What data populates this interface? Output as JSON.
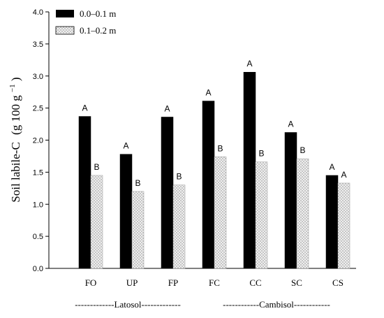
{
  "chart_data": {
    "type": "bar",
    "ylabel_main": "Soil labile-C",
    "ylabel_unit_open": "(g 100 g",
    "ylabel_unit_sup": "−1",
    "ylabel_unit_close": ")",
    "ylim": [
      0,
      4.0
    ],
    "yticks": [
      "0.0",
      "0.5",
      "1.0",
      "1.5",
      "2.0",
      "2.5",
      "3.0",
      "3.5",
      "4.0"
    ],
    "categories": [
      "FO",
      "UP",
      "FP",
      "FC",
      "CC",
      "SC",
      "CS"
    ],
    "series": [
      {
        "name": "0.0–0.1 m",
        "pattern": "solid",
        "color": "#000000",
        "values": [
          2.37,
          1.78,
          2.36,
          2.61,
          3.06,
          2.12,
          1.45
        ],
        "letters": [
          "A",
          "A",
          "A",
          "A",
          "A",
          "A",
          "A"
        ]
      },
      {
        "name": "0.1–0.2 m",
        "pattern": "dotted",
        "color": "#e8e8e8",
        "values": [
          1.45,
          1.2,
          1.3,
          1.74,
          1.66,
          1.71,
          1.33
        ],
        "letters": [
          "B",
          "B",
          "B",
          "B",
          "B",
          "B",
          "A"
        ]
      }
    ],
    "groups": [
      {
        "label": "-------------Latosol-------------"
      },
      {
        "label": "------------Cambisol------------"
      }
    ],
    "legend_position": "top-left",
    "grid": false
  }
}
